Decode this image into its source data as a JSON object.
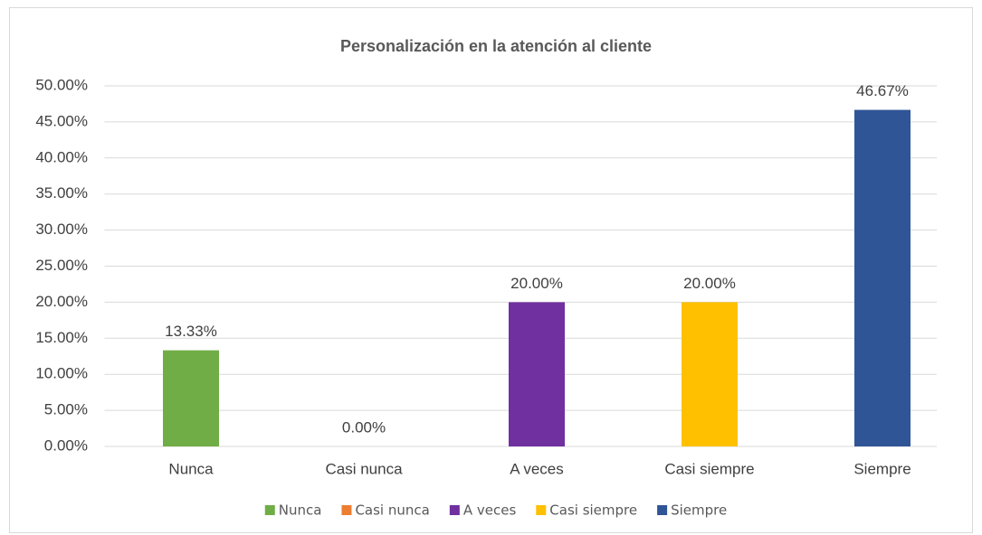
{
  "chart_data": {
    "type": "bar",
    "title": "Personalización en la atención al cliente",
    "categories": [
      "Nunca",
      "Casi nunca",
      "A veces",
      "Casi siempre",
      "Siempre"
    ],
    "values": [
      13.33,
      0,
      20,
      20,
      46.67
    ],
    "value_labels": [
      "13.33%",
      "0.00%",
      "20.00%",
      "20.00%",
      "46.67%"
    ],
    "colors": [
      "#70ad47",
      "#ed7d31",
      "#7030a0",
      "#ffc000",
      "#2f5597"
    ],
    "ylim": [
      0,
      50
    ],
    "yticks": [
      {
        "value": 0,
        "label": "0.00%"
      },
      {
        "value": 5,
        "label": "5.00%"
      },
      {
        "value": 10,
        "label": "10.00%"
      },
      {
        "value": 15,
        "label": "15.00%"
      },
      {
        "value": 20,
        "label": "20.00%"
      },
      {
        "value": 25,
        "label": "25.00%"
      },
      {
        "value": 30,
        "label": "30.00%"
      },
      {
        "value": 35,
        "label": "35.00%"
      },
      {
        "value": 40,
        "label": "40.00%"
      },
      {
        "value": 45,
        "label": "45.00%"
      },
      {
        "value": 50,
        "label": "50.00%"
      }
    ],
    "grid": true,
    "legend": "bottom"
  }
}
